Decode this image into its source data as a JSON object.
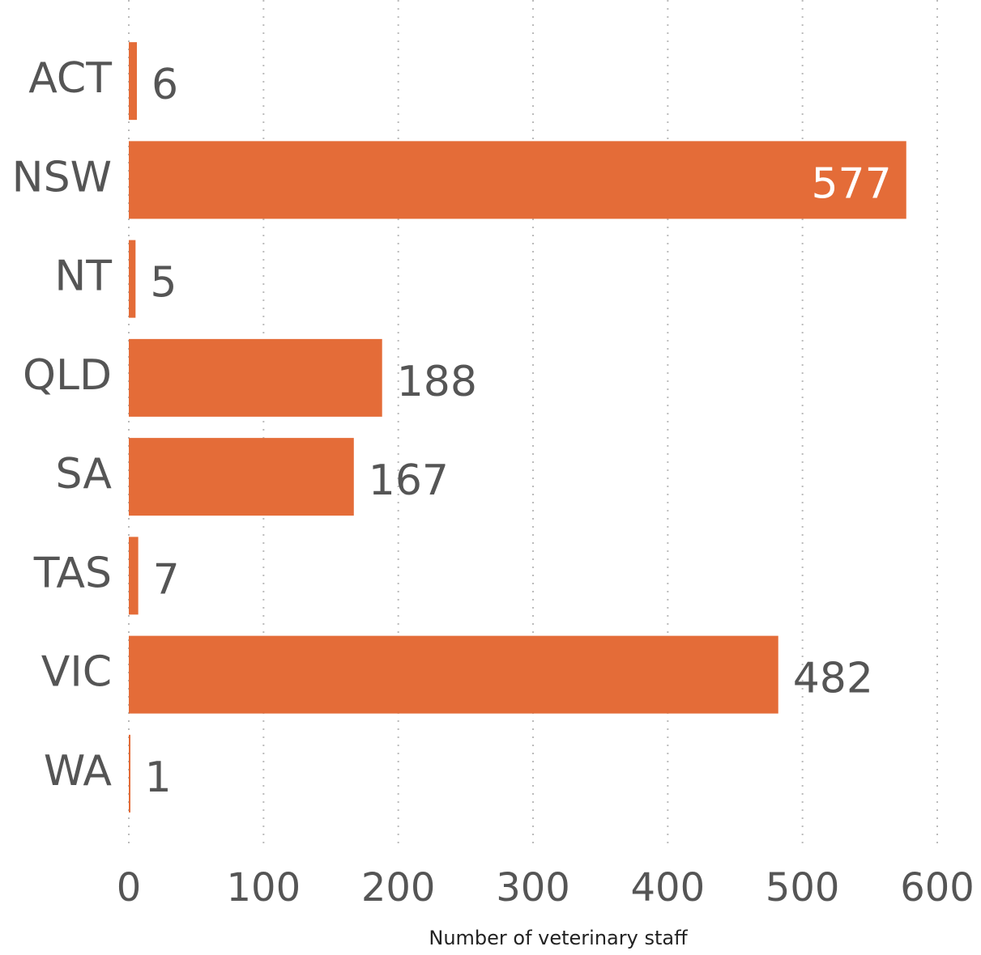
{
  "chart_data": {
    "type": "bar",
    "orientation": "horizontal",
    "categories": [
      "ACT",
      "NSW",
      "NT",
      "QLD",
      "SA",
      "TAS",
      "VIC",
      "WA"
    ],
    "values": [
      6,
      577,
      5,
      188,
      167,
      7,
      482,
      1
    ],
    "color": "#e46c38",
    "x_label": "Number of veterinary staff",
    "xlim": [
      0,
      600
    ],
    "xticks": [
      0,
      100,
      200,
      300,
      400,
      500,
      600
    ],
    "grid": true
  }
}
